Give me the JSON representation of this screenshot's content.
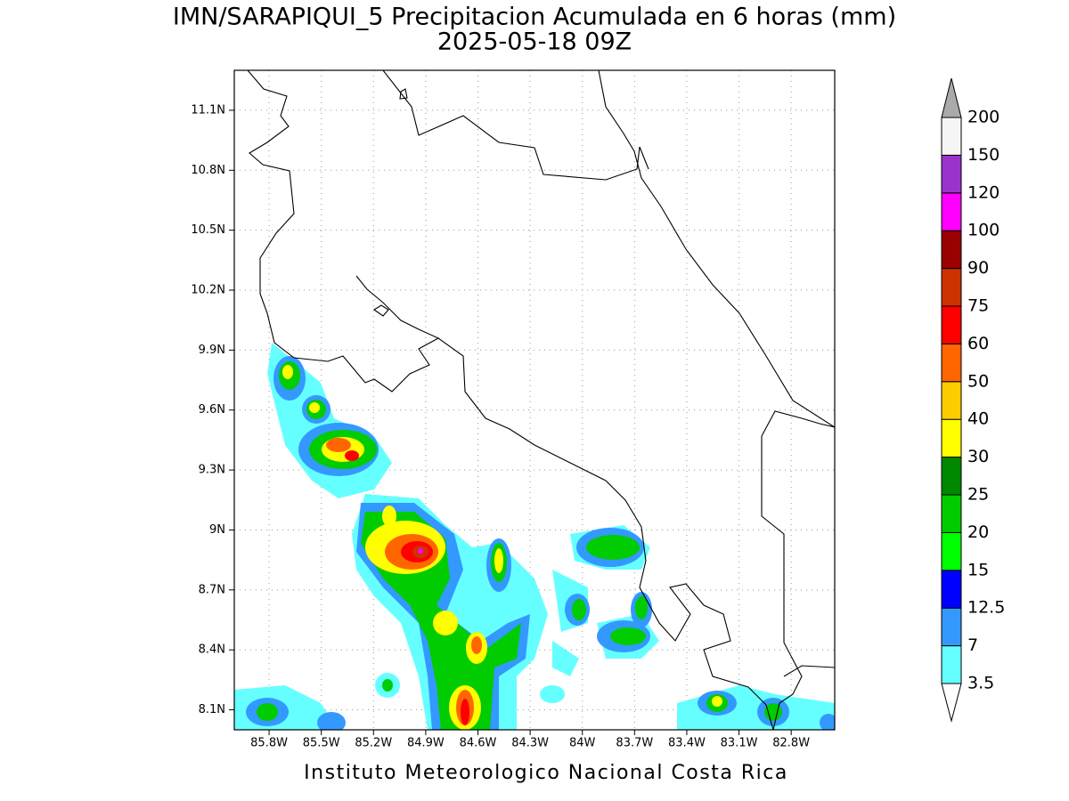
{
  "title": "IMN/SARAPIQUI_5 Precipitacion Acumulada en 6 horas (mm)",
  "subtitle": "2025-05-18 09Z",
  "footer": "Instituto Meteorologico Nacional Costa Rica",
  "map": {
    "xlim": [
      -86.0,
      -82.55
    ],
    "ylim": [
      8.0,
      11.3
    ],
    "grid": true,
    "xticks": [
      {
        "value": -85.8,
        "label": "85.8W"
      },
      {
        "value": -85.5,
        "label": "85.5W"
      },
      {
        "value": -85.2,
        "label": "85.2W"
      },
      {
        "value": -84.9,
        "label": "84.9W"
      },
      {
        "value": -84.6,
        "label": "84.6W"
      },
      {
        "value": -84.3,
        "label": "84.3W"
      },
      {
        "value": -84.0,
        "label": "84W"
      },
      {
        "value": -83.7,
        "label": "83.7W"
      },
      {
        "value": -83.4,
        "label": "83.4W"
      },
      {
        "value": -83.1,
        "label": "83.1W"
      },
      {
        "value": -82.8,
        "label": "82.8W"
      }
    ],
    "yticks": [
      {
        "value": 11.1,
        "label": "11.1N"
      },
      {
        "value": 10.8,
        "label": "10.8N"
      },
      {
        "value": 10.5,
        "label": "10.5N"
      },
      {
        "value": 10.2,
        "label": "10.2N"
      },
      {
        "value": 9.9,
        "label": "9.9N"
      },
      {
        "value": 9.6,
        "label": "9.6N"
      },
      {
        "value": 9.3,
        "label": "9.3N"
      },
      {
        "value": 9.0,
        "label": "9N"
      },
      {
        "value": 8.7,
        "label": "8.7N"
      },
      {
        "value": 8.4,
        "label": "8.4N"
      },
      {
        "value": 8.1,
        "label": "8.1N"
      }
    ]
  },
  "colorbar": {
    "levels": [
      3.5,
      7,
      12.5,
      15,
      20,
      25,
      30,
      40,
      50,
      60,
      75,
      90,
      100,
      120,
      150,
      200
    ],
    "colors": [
      "#66ffff",
      "#3399ff",
      "#0000ff",
      "#00ff00",
      "#00cc00",
      "#008800",
      "#ffff00",
      "#ffcc00",
      "#ff6600",
      "#ff0000",
      "#cc3300",
      "#990000",
      "#ff00ff",
      "#9933cc",
      "#f5f5f5"
    ],
    "under_color": "#ffffff",
    "over_color": "#aaaaaa"
  }
}
